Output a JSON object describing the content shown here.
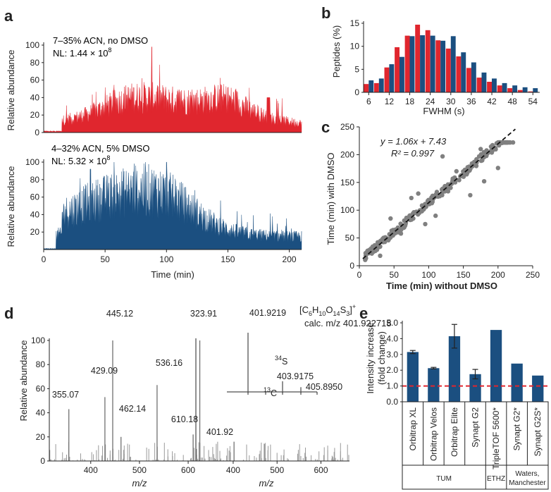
{
  "colors": {
    "red": "#e0262e",
    "blue": "#1b4f80",
    "gray": "#808080",
    "dash_red": "#e0262e"
  },
  "chart_data": [
    {
      "panel": "a",
      "type": "area",
      "ylabel": "Relative abundance",
      "xlabel": "Time (min)",
      "xlim": [
        0,
        210
      ],
      "ylim": [
        0,
        100
      ],
      "x_ticks": [
        "0",
        "50",
        "100",
        "150",
        "200"
      ],
      "y_ticks": [
        "0",
        "20",
        "40",
        "60",
        "80",
        "100"
      ],
      "series": [
        {
          "color": "#e0262e",
          "ann_line1": "7–35% ACN, no DMSO",
          "ann_nl": "NL: 1.44 × 10",
          "ann_exp": "8"
        },
        {
          "color": "#1b4f80",
          "ann_line1": "4–32% ACN, 5% DMSO",
          "ann_nl": "NL: 5.32 × 10",
          "ann_exp": "8"
        }
      ]
    },
    {
      "panel": "b",
      "type": "bar",
      "ylabel": "Peptides (%)",
      "xlabel": "FWHM (s)",
      "ylim": [
        0,
        15
      ],
      "y_ticks": [
        "0",
        "5",
        "10",
        "15"
      ],
      "x_ticks": [
        "6",
        "12",
        "18",
        "24",
        "30",
        "36",
        "42",
        "48",
        "54"
      ],
      "bins": [
        6,
        9,
        12,
        15,
        18,
        21,
        24,
        27,
        30,
        33,
        36,
        39,
        42,
        45,
        48,
        51,
        54
      ],
      "series": [
        {
          "color": "#e0262e",
          "values": [
            1.8,
            2.0,
            5.4,
            9.8,
            12.3,
            14.7,
            13.5,
            11.3,
            9.5,
            7.8,
            5.3,
            3.2,
            2.3,
            1.5,
            0.9,
            0.5,
            0.2
          ]
        },
        {
          "color": "#1b4f80",
          "values": [
            2.6,
            3.0,
            6.1,
            7.7,
            12.2,
            12.4,
            12.3,
            11.2,
            12.2,
            8.7,
            6.5,
            4.3,
            3.0,
            2.0,
            1.5,
            1.1,
            0.9
          ]
        }
      ]
    },
    {
      "panel": "c",
      "type": "scatter",
      "ylabel": "Time (min) with DMSO",
      "xlabel": "Time (min) without DMSO",
      "xlim": [
        0,
        250
      ],
      "ylim": [
        0,
        250
      ],
      "x_ticks": [
        "0",
        "50",
        "100",
        "150",
        "200",
        "250"
      ],
      "y_ticks": [
        "0",
        "50",
        "100",
        "150",
        "200",
        "250"
      ],
      "fit_eq": "y = 1.06x + 7.43",
      "fit_r2": "R² = 0.997",
      "fit": {
        "slope": 1.06,
        "intercept": 7.43
      },
      "plateau_y": 222,
      "outliers": [
        [
          75,
          122
        ],
        [
          120,
          197
        ],
        [
          150,
          161
        ],
        [
          128,
          134
        ],
        [
          160,
          127
        ],
        [
          180,
          152
        ],
        [
          45,
          85
        ],
        [
          60,
          58
        ],
        [
          95,
          75
        ],
        [
          110,
          90
        ],
        [
          20,
          25
        ],
        [
          30,
          18
        ],
        [
          175,
          210
        ],
        [
          200,
          176
        ],
        [
          85,
          130
        ],
        [
          140,
          170
        ]
      ]
    },
    {
      "panel": "d",
      "type": "bar",
      "ylabel": "Relative abundance",
      "xlabel": "m/z",
      "xlim": [
        315,
        665
      ],
      "ylim": [
        0,
        100
      ],
      "x_ticks": [
        "400",
        "500",
        "600"
      ],
      "y_ticks": [
        "0",
        "20",
        "40",
        "60",
        "80",
        "100"
      ],
      "left_peaks": [
        {
          "mz": 355.07,
          "rel": 43,
          "label": "355.07"
        },
        {
          "mz": 429.09,
          "rel": 53,
          "label": "429.09"
        },
        {
          "mz": 445.12,
          "rel": 100,
          "label": "445.12"
        },
        {
          "mz": 462.14,
          "rel": 20,
          "label": "462.14"
        },
        {
          "mz": 536.16,
          "rel": 63,
          "label": "536.16"
        },
        {
          "mz": 610.18,
          "rel": 22,
          "label": "610.18"
        }
      ],
      "right_peaks": [
        {
          "mz": 323.91,
          "rel": 100,
          "label": "323.91"
        },
        {
          "mz": 401.92,
          "rel": 16,
          "label": "401.92"
        }
      ],
      "inset_peaks": [
        {
          "label": "401.9219",
          "rel": 100
        },
        {
          "label": "403.9175",
          "rel": 18
        },
        {
          "label": "405.8950",
          "rel": 8
        }
      ],
      "formula_prefix": "[C",
      "formula_6": "6",
      "formula_h": "H",
      "formula_10": "10",
      "formula_o": "O",
      "formula_14": "14",
      "formula_s": "S",
      "formula_3": "3",
      "formula_close": "]",
      "formula_charge": "+",
      "calc_label": "calc. m/z 401.922718",
      "iso_34s_mass": "34",
      "iso_34s_el": "S",
      "iso_13c_mass": "13",
      "iso_13c_el": "C"
    },
    {
      "panel": "e",
      "type": "bar",
      "ylabel_1": "Intensity increase",
      "ylabel_2": "(fold change)",
      "ylim": [
        0,
        5
      ],
      "y_ticks": [
        "0.0",
        "1.0",
        "2.0",
        "3.0",
        "4.0",
        "5.0"
      ],
      "reference_line": 1.0,
      "categories": [
        "Orbitrap XL",
        "Orbitrap Velos",
        "Orbitrap Elite",
        "Synapt G2",
        "TripleTOF 5600*",
        "Synapt G2*",
        "Synapt G2S*"
      ],
      "values": [
        3.15,
        2.13,
        4.15,
        1.75,
        4.55,
        2.42,
        1.66
      ],
      "errors": [
        0.1,
        0.05,
        0.75,
        0.3,
        0,
        0,
        0
      ],
      "groups": [
        {
          "label": "TUM",
          "span": [
            0,
            3
          ]
        },
        {
          "label": "ETHZ",
          "span": [
            4,
            4
          ]
        },
        {
          "label": "Waters, Manchester",
          "span": [
            5,
            6
          ]
        }
      ]
    }
  ]
}
